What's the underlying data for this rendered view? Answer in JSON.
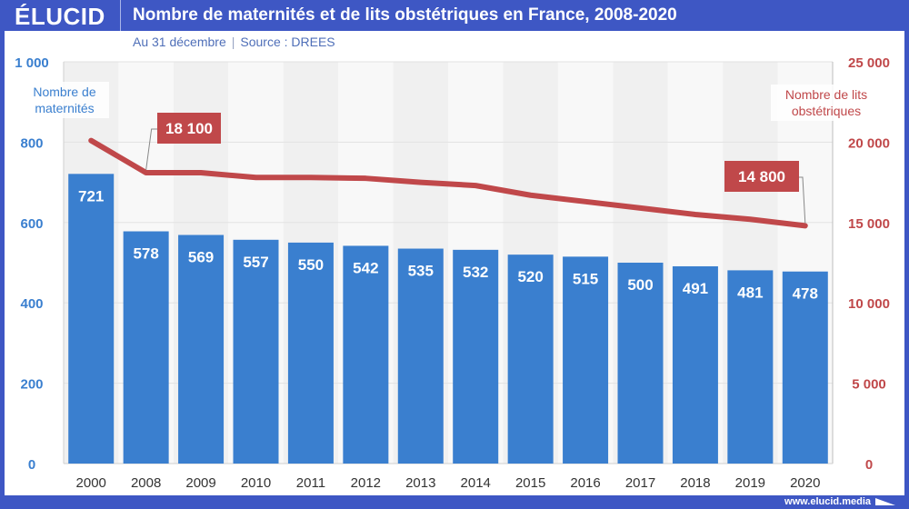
{
  "header": {
    "logo": "ÉLUCID",
    "title": "Nombre de maternités et de lits obstétriques en France, 2008-2020"
  },
  "subtitle": {
    "date": "Au 31 décembre",
    "separator": "|",
    "source": "Source : DREES"
  },
  "footer": {
    "url": "www.elucid.media"
  },
  "colors": {
    "frame": "#3e57c4",
    "bar": "#3a7fcf",
    "line": "#c0484a",
    "band_dark": "#f0f0f0",
    "band_light": "#f8f8f8"
  },
  "chart_data": {
    "type": "bar+line",
    "title": "Nombre de maternités et de lits obstétriques en France, 2008-2020",
    "subtitle": "Au 31 décembre | Source : DREES",
    "categories": [
      "2000",
      "2008",
      "2009",
      "2010",
      "2011",
      "2012",
      "2013",
      "2014",
      "2015",
      "2016",
      "2017",
      "2018",
      "2019",
      "2020"
    ],
    "series": [
      {
        "name": "Nombre de maternités",
        "type": "bar",
        "axis": "left",
        "values": [
          721,
          578,
          569,
          557,
          550,
          542,
          535,
          532,
          520,
          515,
          500,
          491,
          481,
          478
        ],
        "labels": [
          "721",
          "578",
          "569",
          "557",
          "550",
          "542",
          "535",
          "532",
          "520",
          "515",
          "500",
          "491",
          "481",
          "478"
        ]
      },
      {
        "name": "Nombre de lits obstétriques",
        "type": "line",
        "axis": "right",
        "values": [
          20100,
          18100,
          18100,
          17800,
          17800,
          17750,
          17500,
          17300,
          16700,
          16300,
          15900,
          15500,
          15200,
          14800
        ]
      }
    ],
    "left_axis": {
      "title": [
        "Nombre de",
        "maternités"
      ],
      "ylim": [
        0,
        1000
      ],
      "ticks": [
        0,
        200,
        400,
        600,
        800,
        1000
      ],
      "tick_labels": [
        "0",
        "200",
        "400",
        "600",
        "800",
        "1 000"
      ]
    },
    "right_axis": {
      "title": [
        "Nombre de lits",
        "obstétriques"
      ],
      "ylim": [
        0,
        25000
      ],
      "ticks": [
        0,
        5000,
        10000,
        15000,
        20000,
        25000
      ],
      "tick_labels": [
        "0",
        "5 000",
        "10 000",
        "15 000",
        "20 000",
        "25 000"
      ]
    },
    "annotations": [
      {
        "category": "2008",
        "series": "Nombre de lits obstétriques",
        "text": "18 100"
      },
      {
        "category": "2020",
        "series": "Nombre de lits obstétriques",
        "text": "14 800"
      }
    ],
    "grid": true,
    "legend": "none"
  }
}
